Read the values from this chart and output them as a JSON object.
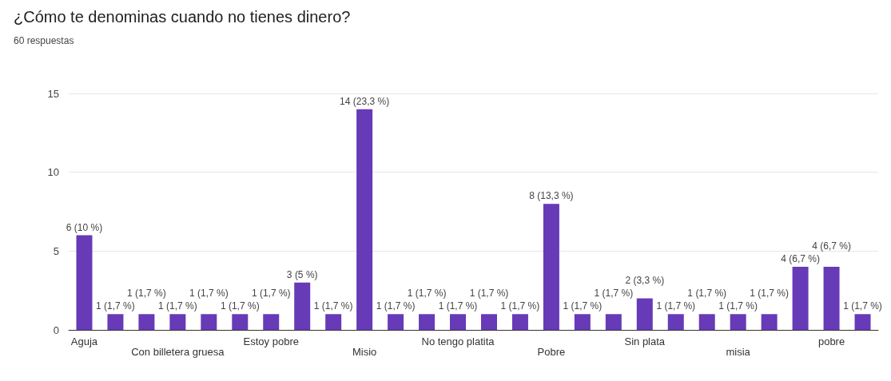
{
  "chart_data": {
    "type": "bar",
    "title": "¿Cómo te denominas cuando no tienes dinero?",
    "subtitle": "60 respuestas",
    "categories": [
      "Aguja",
      null,
      null,
      "Con billetera gruesa",
      null,
      null,
      "Estoy pobre",
      null,
      null,
      "Misio",
      null,
      null,
      "No tengo platita",
      null,
      null,
      "Pobre",
      null,
      null,
      "Sin plata",
      null,
      null,
      "misia",
      null,
      null,
      "pobre",
      null
    ],
    "values": [
      6,
      1,
      1,
      1,
      1,
      1,
      1,
      3,
      1,
      14,
      1,
      1,
      1,
      1,
      1,
      8,
      1,
      1,
      2,
      1,
      1,
      1,
      1,
      4,
      4,
      1
    ],
    "color": "#673ab7",
    "value_labels": [
      "6 (10 %)",
      "1 (1,7 %)",
      "1 (1,7 %)",
      "1 (1,7 %)",
      "1 (1,7 %)",
      "1 (1,7 %)",
      "1 (1,7 %)",
      "3 (5 %)",
      "1 (1,7 %)",
      "14 (23,3 %)",
      "1 (1,7 %)",
      "1 (1,7 %)",
      "1 (1,7 %)",
      "1 (1,7 %)",
      "1 (1,7 %)",
      "8 (13,3 %)",
      "1 (1,7 %)",
      "1 (1,7 %)",
      "2 (3,3 %)",
      "1 (1,7 %)",
      "1 (1,7 %)",
      "1 (1,7 %)",
      "1 (1,7 %)",
      "4 (6,7 %)",
      "4 (6,7 %)",
      "1 (1,7 %)"
    ],
    "ylim": [
      0,
      15
    ],
    "yticks": [
      0,
      5,
      10,
      15
    ],
    "grid": "y"
  }
}
